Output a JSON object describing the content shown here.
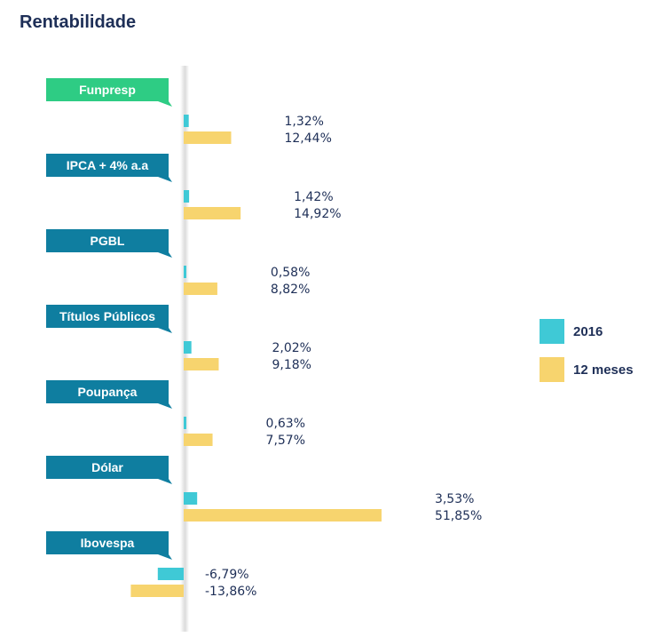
{
  "title": "Rentabilidade",
  "chart_data": {
    "type": "bar",
    "orientation": "horizontal",
    "title": "Rentabilidade",
    "categories": [
      "Funpresp",
      "IPCA + 4% a.a",
      "PGBL",
      "Títulos Públicos",
      "Poupança",
      "Dólar",
      "Ibovespa"
    ],
    "series": [
      {
        "name": "2016",
        "color": "#3fc9d6",
        "values": [
          1.32,
          1.42,
          0.58,
          2.02,
          0.63,
          3.53,
          -6.79
        ],
        "labels": [
          "1,32%",
          "1,42%",
          "0,58%",
          "2,02%",
          "0,63%",
          "3,53%",
          "-6,79%"
        ]
      },
      {
        "name": "12 meses",
        "color": "#f7d46e",
        "values": [
          12.44,
          14.92,
          8.82,
          9.18,
          7.57,
          51.85,
          -13.86
        ],
        "labels": [
          "12,44%",
          "14,92%",
          "8,82%",
          "9,18%",
          "7,57%",
          "51,85%",
          "-13,86%"
        ]
      }
    ],
    "category_colors": [
      "#2ecc84",
      "#0f7ea0",
      "#0f7ea0",
      "#0f7ea0",
      "#0f7ea0",
      "#0f7ea0",
      "#0f7ea0"
    ],
    "legend": [
      "2016",
      "12 meses"
    ],
    "legend_position": "right"
  }
}
